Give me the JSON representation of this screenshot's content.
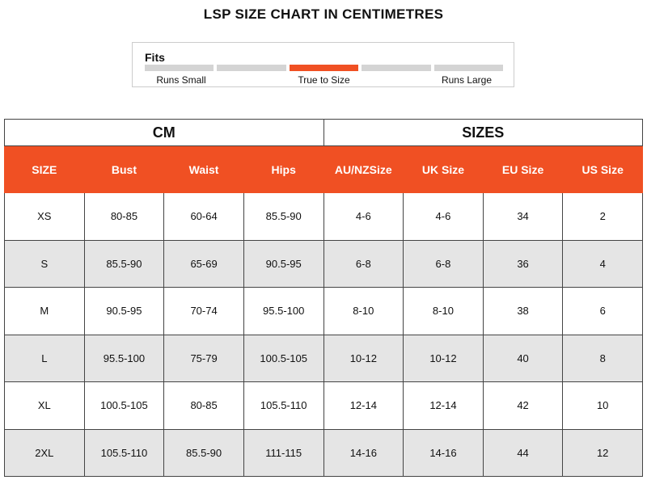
{
  "header": {
    "title": "LSP SIZE CHART IN CENTIMETRES"
  },
  "fits": {
    "label": "Fits",
    "scale_labels": [
      "Runs Small",
      "True to Size",
      "Runs Large"
    ],
    "segment_count": 5,
    "selected_segment": 2
  },
  "table": {
    "groups": [
      "CM",
      "SIZES"
    ],
    "columns": [
      "SIZE",
      "Bust",
      "Waist",
      "Hips",
      "AU/NZSize",
      "UK Size",
      "EU Size",
      "US Size"
    ],
    "rows": [
      [
        "XS",
        "80-85",
        "60-64",
        "85.5-90",
        "4-6",
        "4-6",
        "34",
        "2"
      ],
      [
        "S",
        "85.5-90",
        "65-69",
        "90.5-95",
        "6-8",
        "6-8",
        "36",
        "4"
      ],
      [
        "M",
        "90.5-95",
        "70-74",
        "95.5-100",
        "8-10",
        "8-10",
        "38",
        "6"
      ],
      [
        "L",
        "95.5-100",
        "75-79",
        "100.5-105",
        "10-12",
        "10-12",
        "40",
        "8"
      ],
      [
        "XL",
        "100.5-105",
        "80-85",
        "105.5-110",
        "12-14",
        "12-14",
        "42",
        "10"
      ],
      [
        "2XL",
        "105.5-110",
        "85.5-90",
        "111-115",
        "14-16",
        "14-16",
        "44",
        "12"
      ]
    ]
  }
}
